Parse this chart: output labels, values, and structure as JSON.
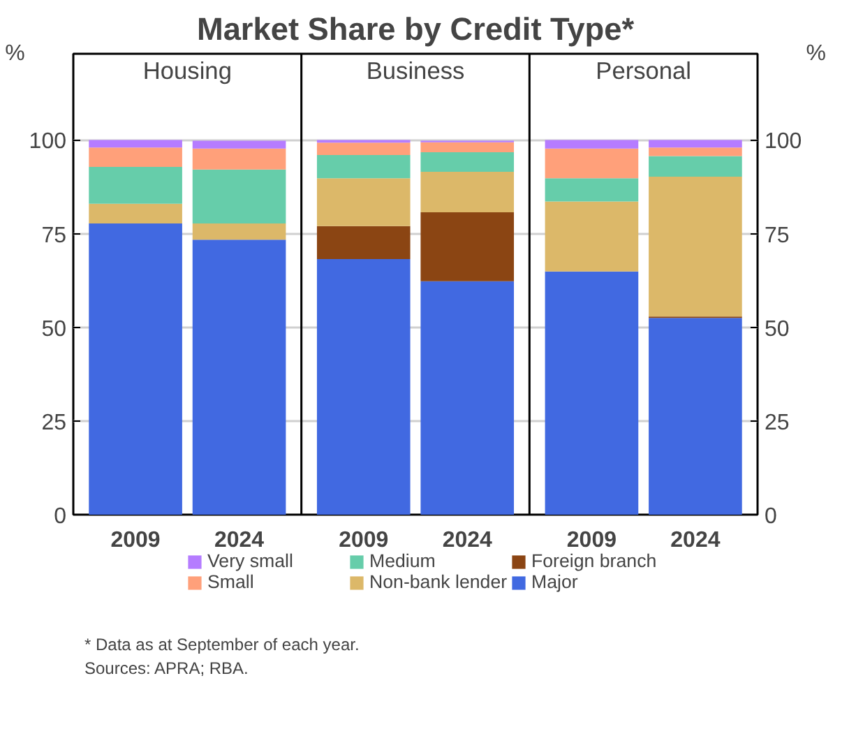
{
  "chart_data": {
    "type": "bar",
    "title": "Market Share by Credit Type*",
    "ylabel": "%",
    "y2label": "%",
    "stacked": true,
    "categories": [
      "2009",
      "2024",
      "2009",
      "2024",
      "2009",
      "2024"
    ],
    "series": [
      {
        "name": "Major",
        "color": "#4169e1",
        "values": [
          77.7,
          73.4,
          68.2,
          62.3,
          64.9,
          52.5
        ]
      },
      {
        "name": "Foreign branch",
        "color": "#8b4513",
        "values": [
          0,
          0,
          8.8,
          18.4,
          0,
          0.4
        ]
      },
      {
        "name": "Non-bank lender",
        "color": "#dcb869",
        "values": [
          5.3,
          4.3,
          12.8,
          10.8,
          18.7,
          37.3
        ]
      },
      {
        "name": "Medium",
        "color": "#66cdaa",
        "values": [
          9.8,
          14.4,
          6.2,
          5.2,
          6.2,
          5.5
        ]
      },
      {
        "name": "Small",
        "color": "#ffa07a",
        "values": [
          5.2,
          5.6,
          3.3,
          2.7,
          7.9,
          2.3
        ]
      },
      {
        "name": "Very small",
        "color": "#b57cff",
        "values": [
          2.0,
          2.1,
          0.7,
          0.4,
          2.3,
          2.0
        ]
      }
    ],
    "ylim": [
      0,
      123
    ],
    "yticks": [
      0,
      25,
      50,
      75,
      100
    ],
    "y2lim": [
      0,
      123
    ],
    "y2ticks": [
      0,
      25,
      50,
      75,
      100
    ],
    "grid": "y",
    "legend": "bottom",
    "annotations": [
      "Housing",
      "Business",
      "Personal",
      "*      Data as at September of each year.",
      "Sources:   APRA; RBA."
    ]
  }
}
